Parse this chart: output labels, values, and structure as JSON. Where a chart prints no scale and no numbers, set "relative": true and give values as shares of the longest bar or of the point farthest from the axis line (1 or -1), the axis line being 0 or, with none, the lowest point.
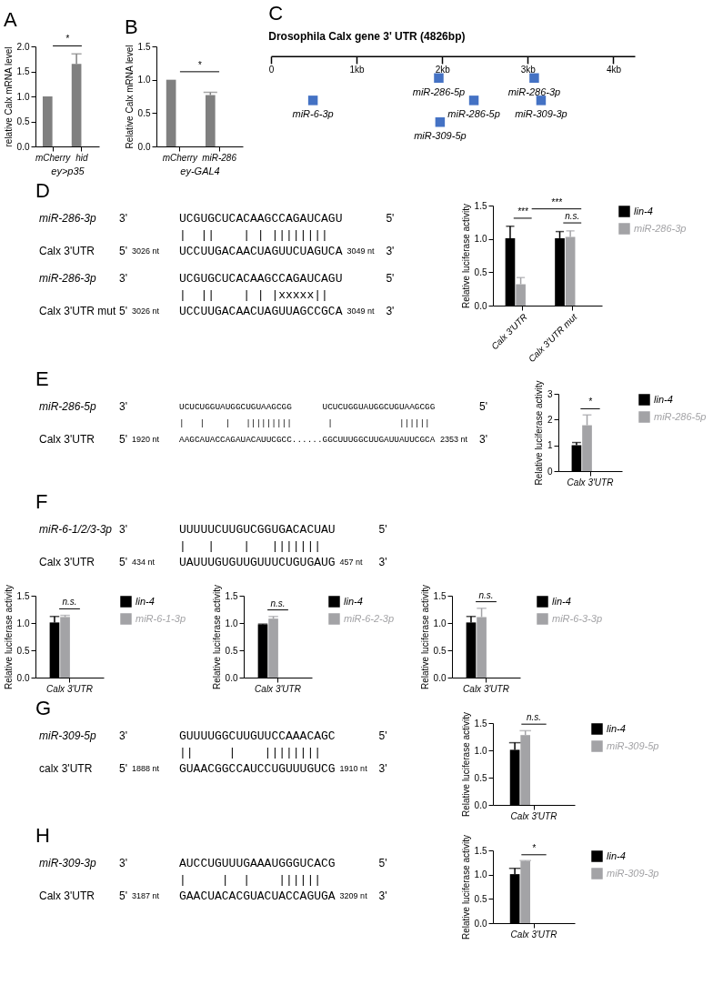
{
  "chart_data": [
    {
      "type": "bar",
      "title": "A",
      "categories": [
        "mCherry",
        "hid"
      ],
      "values": [
        1.0,
        1.65
      ],
      "errors": [
        null,
        0.2
      ],
      "color": "#808080",
      "ylabel": "relative Calx mRNA level",
      "xlabel": "ey>p35",
      "ylim": [
        0,
        2
      ],
      "yticks": [
        {
          "value": 0,
          "label": "0.0"
        },
        {
          "value": 0.5,
          "label": "0.5"
        },
        {
          "value": 1,
          "label": "1.0"
        },
        {
          "value": 1.5,
          "label": "1.5"
        },
        {
          "value": 2,
          "label": "2.0"
        }
      ],
      "annotations": [
        "*"
      ]
    },
    {
      "type": "bar",
      "title": "B",
      "categories": [
        "mCherry",
        "miR-286"
      ],
      "values": [
        1.0,
        0.77
      ],
      "errors": [
        null,
        0.04
      ],
      "color": "#808080",
      "ylabel": "Relative Calx mRNA level",
      "xlabel": "ey-GAL4",
      "ylim": [
        0,
        1.5
      ],
      "yticks": [
        {
          "value": 0,
          "label": "0.0"
        },
        {
          "value": 0.5,
          "label": "0.5"
        },
        {
          "value": 1,
          "label": "1.0"
        },
        {
          "value": 1.5,
          "label": "1.5"
        }
      ],
      "annotations": [
        "*"
      ]
    },
    {
      "type": "scatter",
      "title": "C",
      "subtitle": "Drosophila Calx gene 3' UTR (4826bp)",
      "x": [
        0.49,
        1.96,
        1.975,
        2.37,
        3.075,
        3.155
      ],
      "values": [
        -0.67,
        -0.33,
        -1,
        -0.67,
        -0.33,
        -0.67
      ],
      "relative": true,
      "color": "#4472c4",
      "marker": "square",
      "xlim": [
        0,
        4.25
      ],
      "xticks": [
        {
          "value": 0,
          "label": "0"
        },
        {
          "value": 1,
          "label": "1kb"
        },
        {
          "value": 2,
          "label": "2kb"
        },
        {
          "value": 3,
          "label": "3kb"
        },
        {
          "value": 4,
          "label": "4kb"
        }
      ],
      "annotations": [
        {
          "text": "miR-6-3p",
          "x": 0.49,
          "y": -0.67
        },
        {
          "text": "miR-286-5p",
          "x": 1.96,
          "y": -0.33
        },
        {
          "text": "miR-309-5p",
          "x": 1.975,
          "y": -1
        },
        {
          "text": "miR-286-5p",
          "x": 2.37,
          "y": -0.67
        },
        {
          "text": "miR-286-3p",
          "x": 3.075,
          "y": -0.33
        },
        {
          "text": "miR-309-3p",
          "x": 3.155,
          "y": -0.67
        }
      ]
    },
    {
      "type": "other",
      "title": "D",
      "annotations": [
        "miR-286-3p",
        "3'",
        "UCGUGCUCACAAGCCAGAUCAGU",
        "5'",
        "  |  ||    | | ||||||||",
        "Calx 3'UTR",
        "5'",
        "3026 nt",
        "UCCUUGACAACUAGUUCUAGUCA",
        "3049 nt",
        "3'",
        "miR-286-3p",
        "3'",
        "UCGUGCUCACAAGCCAGAUCAGU",
        "5'",
        "  |  ||    | | |xxxxx||",
        "Calx 3'UTR mut",
        "5'",
        "3026 nt",
        "UCCUUGACAACUAGUUAGCCGCA",
        "3049 nt",
        "3'"
      ]
    },
    {
      "type": "bar",
      "categories": [
        "Calx 3'UTR",
        "Calx 3'UTR mut"
      ],
      "series": [
        {
          "name": "lin-4",
          "color": "#000000",
          "values": [
            1.01,
            1.01
          ],
          "errors": [
            0.18,
            0.1
          ]
        },
        {
          "name": "miR-286-3p",
          "color": "#a3a3a6",
          "values": [
            0.32,
            1.03
          ],
          "errors": [
            0.1,
            0.09
          ]
        }
      ],
      "ylabel": "Relative luciferase activity",
      "ylim": [
        0,
        1.5
      ],
      "yticks": [
        {
          "value": 0,
          "label": "0.0"
        },
        {
          "value": 0.5,
          "label": "0.5"
        },
        {
          "value": 1,
          "label": "1.0"
        },
        {
          "value": 1.5,
          "label": "1.5"
        }
      ],
      "legend": "right",
      "annotations": [
        "***",
        "***",
        "n.s."
      ]
    },
    {
      "type": "other",
      "title": "E",
      "annotations": [
        "miR-286-5p",
        "3'",
        "UCUCUGGUAUGGCUGUAAGCGG      UCUCUGGUAUGGCUGUAAGCGG",
        "5'",
        "|   |    |   |||||||||       |             |||||| ",
        "Calx 3'UTR",
        "5'",
        "1920 nt",
        "AAGCAUACCAGAUACAUUCGCC......GGCUUUGGCUUGAUUAUUCGCA",
        "2353 nt",
        "3'"
      ]
    },
    {
      "type": "bar",
      "categories": [
        "Calx 3'UTR"
      ],
      "series": [
        {
          "name": "lin-4",
          "color": "#000000",
          "values": [
            1.01
          ],
          "errors": [
            0.1
          ]
        },
        {
          "name": "miR-286-5p",
          "color": "#a3a3a6",
          "values": [
            1.78
          ],
          "errors": [
            0.4
          ]
        }
      ],
      "ylabel": "Relative luciferase activity",
      "ylim": [
        0,
        3
      ],
      "yticks": [
        0,
        1,
        2,
        3
      ],
      "legend": "right",
      "annotations": [
        "*"
      ]
    },
    {
      "type": "other",
      "title": "F",
      "annotations": [
        "miR-6-1/2/3-3p",
        "3'",
        "UUUUUCUUGUCGGUGACACUAU",
        "5'",
        " |   |    |   ||||||| ",
        "Calx 3'UTR",
        "5'",
        "434 nt",
        "UAUUUGUGUUGUUUCUGUGAUG",
        "457 nt",
        "3'"
      ]
    },
    {
      "type": "bar",
      "categories": [
        "Calx 3'UTR"
      ],
      "series": [
        {
          "name": "lin-4",
          "color": "#000000",
          "values": [
            1.01
          ],
          "errors": [
            0.11
          ]
        },
        {
          "name": "miR-6-1-3p",
          "color": "#a3a3a6",
          "values": [
            1.11
          ],
          "errors": [
            0.03
          ]
        }
      ],
      "ylabel": "Relative luciferase activity",
      "ylim": [
        0,
        1.5
      ],
      "yticks": [
        {
          "value": 0,
          "label": "0.0"
        },
        {
          "value": 0.5,
          "label": "0.5"
        },
        {
          "value": 1,
          "label": "1.0"
        },
        {
          "value": 1.5,
          "label": "1.5"
        }
      ],
      "legend": "right",
      "annotations": [
        "n.s."
      ]
    },
    {
      "type": "bar",
      "categories": [
        "Calx 3'UTR"
      ],
      "series": [
        {
          "name": "lin-4",
          "color": "#000000",
          "values": [
            0.97
          ],
          "errors": [
            0.01
          ]
        },
        {
          "name": "miR-6-2-3p",
          "color": "#a3a3a6",
          "values": [
            1.08
          ],
          "errors": [
            0.04
          ]
        }
      ],
      "ylabel": "Relative luciferase activity",
      "ylim": [
        0,
        1.5
      ],
      "yticks": [
        {
          "value": 0,
          "label": "0.0"
        },
        {
          "value": 0.5,
          "label": "0.5"
        },
        {
          "value": 1,
          "label": "1.0"
        },
        {
          "value": 1.5,
          "label": "1.5"
        }
      ],
      "legend": "right",
      "annotations": [
        "n.s."
      ]
    },
    {
      "type": "bar",
      "categories": [
        "Calx 3'UTR"
      ],
      "series": [
        {
          "name": "lin-4",
          "color": "#000000",
          "values": [
            1.01
          ],
          "errors": [
            0.11
          ]
        },
        {
          "name": "miR-6-3-3p",
          "color": "#a3a3a6",
          "values": [
            1.11
          ],
          "errors": [
            0.16
          ]
        }
      ],
      "ylabel": "Relative luciferase activity",
      "ylim": [
        0,
        1.5
      ],
      "yticks": [
        {
          "value": 0,
          "label": "0.0"
        },
        {
          "value": 0.5,
          "label": "0.5"
        },
        {
          "value": 1,
          "label": "1.0"
        },
        {
          "value": 1.5,
          "label": "1.5"
        }
      ],
      "legend": "right",
      "annotations": [
        "n.s."
      ]
    },
    {
      "type": "other",
      "title": "G",
      "annotations": [
        "miR-309-5p",
        "3'",
        "GUUUUGGCUUGUUCCAAACAGC",
        "5'",
        "  ||     |    ||||||||",
        "calx 3'UTR",
        "5'",
        "1888 nt",
        "GUAACGGCCAUCCUGUUUGUCG",
        "1910 nt",
        "3'"
      ]
    },
    {
      "type": "bar",
      "categories": [
        "Calx 3'UTR"
      ],
      "series": [
        {
          "name": "lin-4",
          "color": "#000000",
          "values": [
            1.01
          ],
          "errors": [
            0.13
          ]
        },
        {
          "name": "miR-309-5p",
          "color": "#a3a3a6",
          "values": [
            1.28
          ],
          "errors": [
            0.08
          ]
        }
      ],
      "ylabel": "Relative luciferase activity",
      "ylim": [
        0,
        1.5
      ],
      "yticks": [
        {
          "value": 0,
          "label": "0.0"
        },
        {
          "value": 0.5,
          "label": "0.5"
        },
        {
          "value": 1,
          "label": "1.0"
        },
        {
          "value": 1.5,
          "label": "1.5"
        }
      ],
      "legend": "right",
      "annotations": [
        "n.s."
      ]
    },
    {
      "type": "other",
      "title": "H",
      "annotations": [
        "miR-309-3p",
        "3'",
        "AUCCUGUUUGAAAUGGGUCACG",
        "5'",
        " |     |  |    |||||| ",
        "Calx 3'UTR",
        "5'",
        "3187 nt",
        "GAACUACACGUACUACCAGUGA",
        "3209 nt",
        "3'"
      ]
    },
    {
      "type": "bar",
      "categories": [
        "Calx 3'UTR"
      ],
      "series": [
        {
          "name": "lin-4",
          "color": "#000000",
          "values": [
            1.01
          ],
          "errors": [
            0.12
          ]
        },
        {
          "name": "miR-309-3p",
          "color": "#a3a3a6",
          "values": [
            1.28
          ],
          "errors": [
            0.01
          ]
        }
      ],
      "ylabel": "Relative luciferase activity",
      "ylim": [
        0,
        1.5
      ],
      "yticks": [
        {
          "value": 0,
          "label": "0.0"
        },
        {
          "value": 0.5,
          "label": "0.5"
        },
        {
          "value": 1,
          "label": "1.0"
        },
        {
          "value": 1.5,
          "label": "1.5"
        }
      ],
      "legend": "right",
      "annotations": [
        "*"
      ]
    }
  ]
}
